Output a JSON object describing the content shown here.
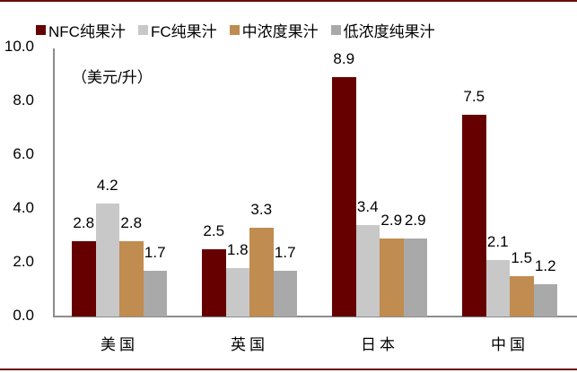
{
  "chart_data": {
    "type": "bar",
    "title": "",
    "unit_label": "（美元/升）",
    "xlabel": "",
    "ylabel": "美元/升",
    "ylim": [
      0,
      10
    ],
    "yticks": [
      "0.0",
      "2.0",
      "4.0",
      "6.0",
      "8.0",
      "10.0"
    ],
    "grid": false,
    "legend_position": "top",
    "categories": [
      "美国",
      "英国",
      "日本",
      "中国"
    ],
    "series": [
      {
        "name": "NFC纯果汁",
        "color": "#660000",
        "values": [
          2.8,
          2.5,
          8.9,
          7.5
        ]
      },
      {
        "name": "FC纯果汁",
        "color": "#c8c8c8",
        "values": [
          4.2,
          1.8,
          3.4,
          2.1
        ]
      },
      {
        "name": "中浓度果汁",
        "color": "#c08c50",
        "values": [
          2.8,
          3.3,
          2.9,
          1.5
        ]
      },
      {
        "name": "低浓度纯果汁",
        "color": "#a9a9a9",
        "values": [
          1.7,
          1.7,
          2.9,
          1.2
        ]
      }
    ]
  }
}
